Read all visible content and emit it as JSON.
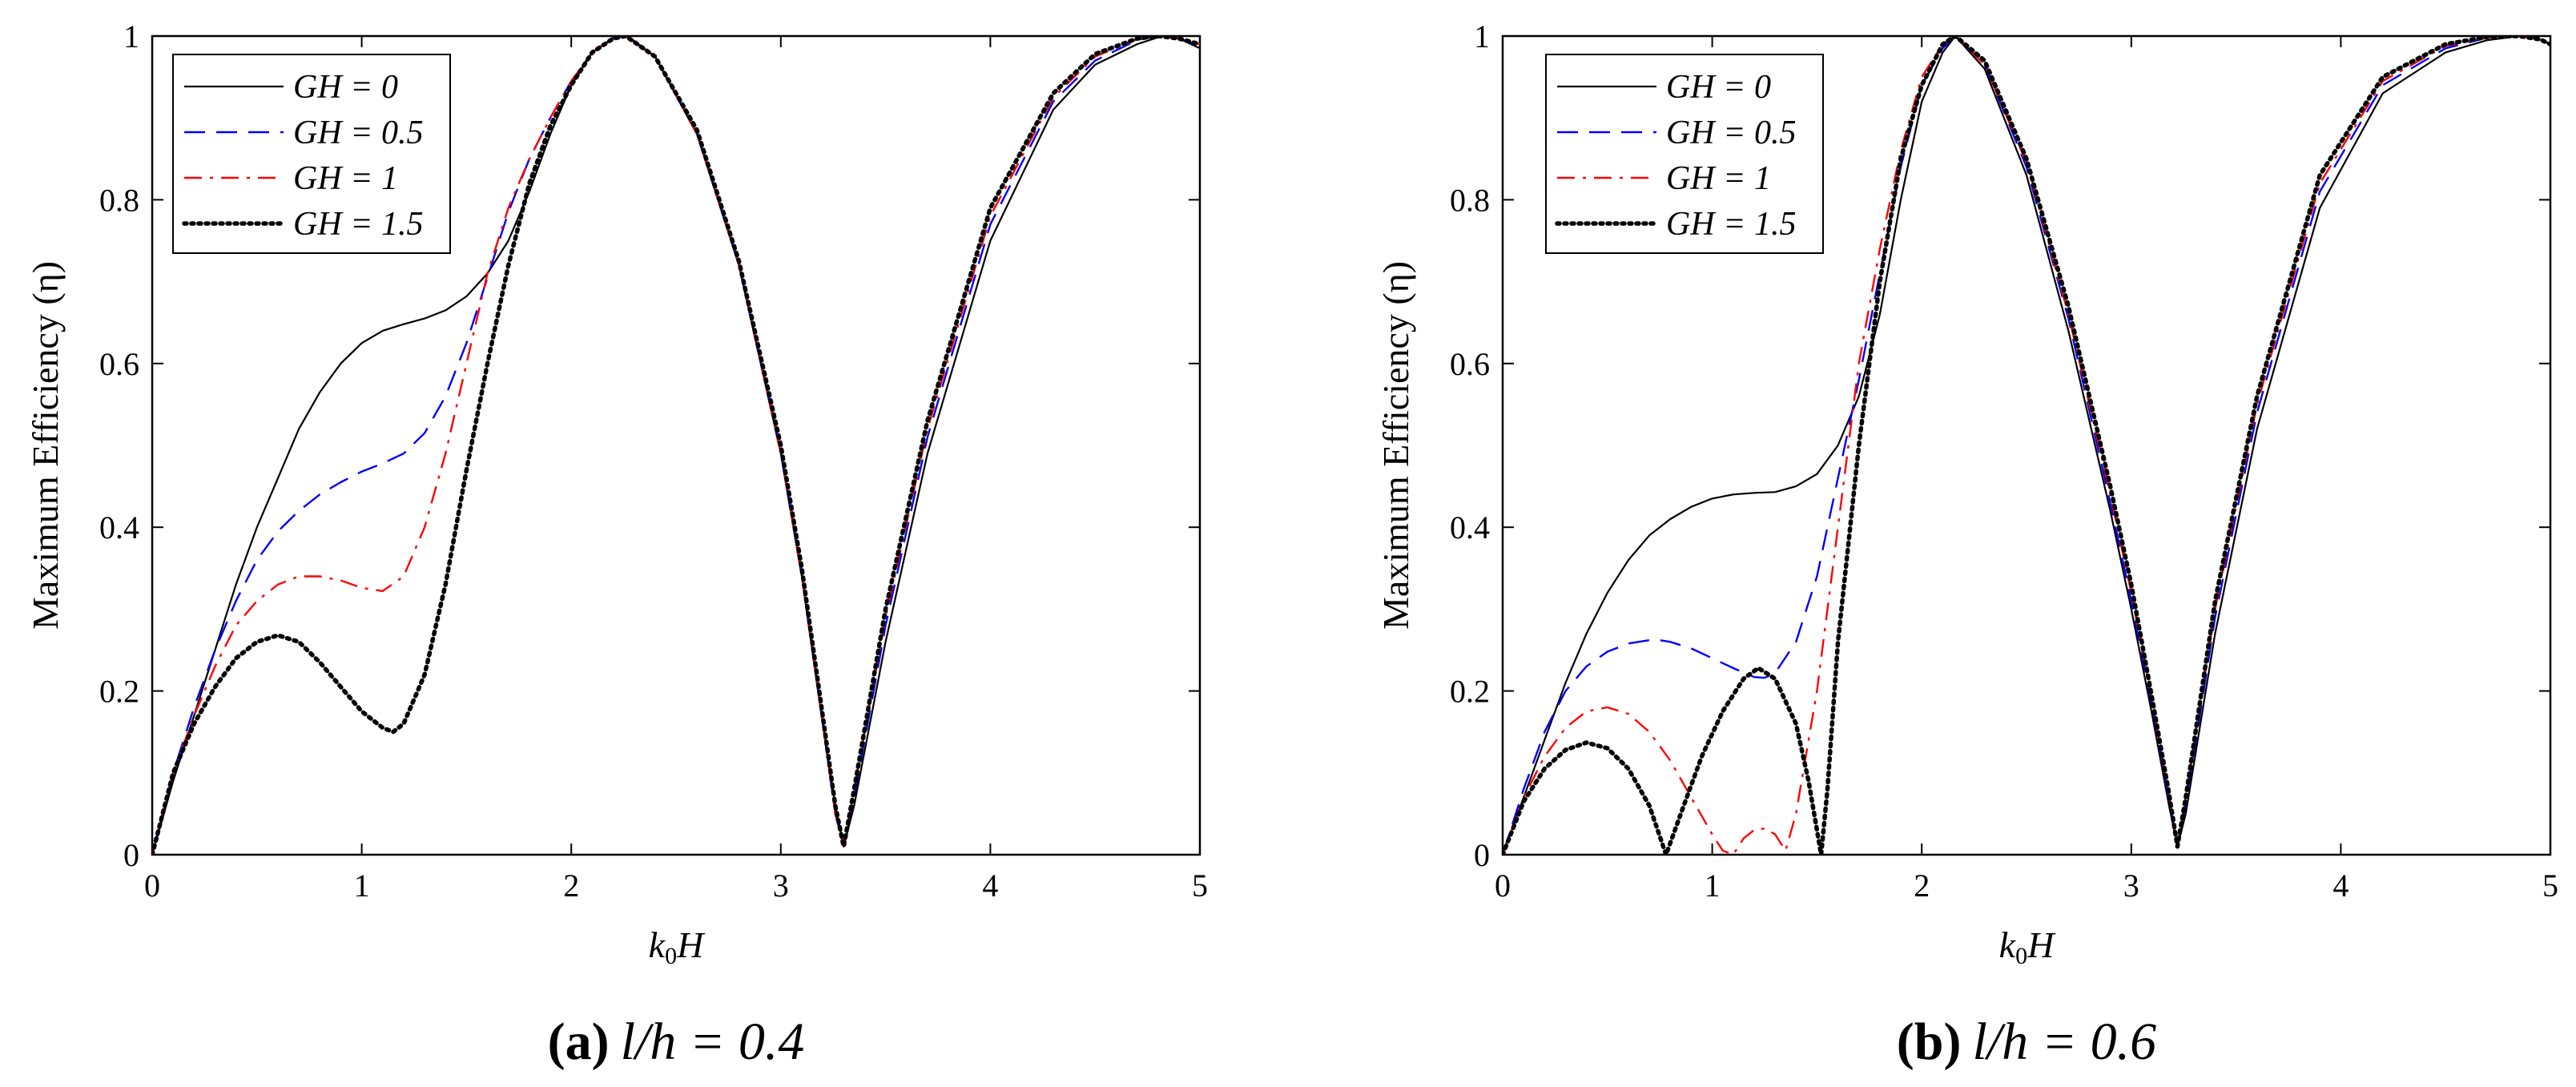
{
  "figure": {
    "caption_a": {
      "tag": "(a)",
      "text": "l/h = 0.4"
    },
    "caption_b": {
      "tag": "(b)",
      "text": "l/h = 0.6"
    }
  },
  "colors": {
    "GH0": "#000000",
    "GH05": "#0000ff",
    "GH1": "#ff0000",
    "GH15": "#000000",
    "axes": "#000000",
    "background": "#ffffff"
  },
  "chart_data": [
    {
      "type": "line",
      "title": "",
      "xlabel": "k₀H",
      "ylabel": "Maximum Efficiency (η)",
      "xlim": [
        0,
        5
      ],
      "ylim": [
        0,
        1
      ],
      "xticks": [
        0,
        1,
        2,
        3,
        4,
        5
      ],
      "xtick_labels": [
        "0",
        "1",
        "2",
        "3",
        "4",
        "5"
      ],
      "yticks": [
        0,
        0.2,
        0.4,
        0.6,
        0.8,
        1
      ],
      "ytick_labels": [
        "0",
        "0.2",
        "0.4",
        "0.6",
        "0.8",
        "1"
      ],
      "grid": false,
      "legend_position": "top-left",
      "series": [
        {
          "name": "GH = 0",
          "style": "solid",
          "x": [
            0,
            0.1,
            0.2,
            0.3,
            0.4,
            0.5,
            0.6,
            0.7,
            0.8,
            0.9,
            1.0,
            1.1,
            1.2,
            1.3,
            1.4,
            1.5,
            1.6,
            1.7,
            1.8,
            1.9,
            2.0,
            2.1,
            2.2,
            2.27,
            2.4,
            2.6,
            2.8,
            3.0,
            3.1,
            3.2,
            3.26,
            3.3,
            3.35,
            3.5,
            3.7,
            4.0,
            4.3,
            4.5,
            4.7,
            4.82,
            4.9,
            5.0
          ],
          "y": [
            0,
            0.09,
            0.17,
            0.25,
            0.33,
            0.4,
            0.46,
            0.52,
            0.565,
            0.6,
            0.625,
            0.64,
            0.648,
            0.655,
            0.665,
            0.682,
            0.71,
            0.75,
            0.81,
            0.88,
            0.94,
            0.98,
            0.998,
            1.0,
            0.975,
            0.88,
            0.72,
            0.49,
            0.34,
            0.16,
            0.06,
            0.01,
            0.06,
            0.26,
            0.49,
            0.75,
            0.91,
            0.965,
            0.99,
            1.0,
            0.997,
            0.985
          ]
        },
        {
          "name": "GH = 0.5",
          "style": "dashed",
          "x": [
            0,
            0.1,
            0.2,
            0.3,
            0.4,
            0.5,
            0.6,
            0.7,
            0.8,
            0.9,
            1.0,
            1.1,
            1.2,
            1.3,
            1.4,
            1.5,
            1.6,
            1.7,
            1.8,
            1.9,
            2.0,
            2.1,
            2.2,
            2.26,
            2.4,
            2.6,
            2.8,
            3.0,
            3.1,
            3.2,
            3.26,
            3.3,
            3.35,
            3.5,
            3.7,
            4.0,
            4.3,
            4.5,
            4.7,
            4.8,
            4.9,
            5.0
          ],
          "y": [
            0,
            0.1,
            0.18,
            0.25,
            0.31,
            0.36,
            0.395,
            0.42,
            0.44,
            0.455,
            0.468,
            0.478,
            0.49,
            0.515,
            0.56,
            0.625,
            0.705,
            0.785,
            0.85,
            0.9,
            0.945,
            0.98,
            0.997,
            1.0,
            0.975,
            0.88,
            0.72,
            0.49,
            0.34,
            0.16,
            0.05,
            0.01,
            0.07,
            0.28,
            0.51,
            0.77,
            0.92,
            0.97,
            0.995,
            1.0,
            0.997,
            0.988
          ]
        },
        {
          "name": "GH = 1",
          "style": "dashdot",
          "x": [
            0,
            0.1,
            0.2,
            0.3,
            0.4,
            0.5,
            0.6,
            0.7,
            0.8,
            0.9,
            1.0,
            1.1,
            1.2,
            1.3,
            1.4,
            1.5,
            1.6,
            1.7,
            1.8,
            1.9,
            2.0,
            2.1,
            2.2,
            2.26,
            2.4,
            2.6,
            2.8,
            3.0,
            3.1,
            3.2,
            3.26,
            3.3,
            3.35,
            3.5,
            3.7,
            4.0,
            4.3,
            4.5,
            4.7,
            4.8,
            4.9,
            5.0
          ],
          "y": [
            0,
            0.1,
            0.17,
            0.23,
            0.28,
            0.31,
            0.33,
            0.34,
            0.34,
            0.335,
            0.326,
            0.322,
            0.34,
            0.4,
            0.49,
            0.6,
            0.71,
            0.79,
            0.85,
            0.9,
            0.945,
            0.98,
            0.997,
            1.0,
            0.975,
            0.88,
            0.72,
            0.49,
            0.34,
            0.16,
            0.05,
            0.01,
            0.08,
            0.29,
            0.52,
            0.78,
            0.925,
            0.975,
            0.996,
            1.0,
            0.997,
            0.99
          ]
        },
        {
          "name": "GH = 1.5",
          "style": "dotted",
          "x": [
            0,
            0.1,
            0.2,
            0.3,
            0.4,
            0.5,
            0.6,
            0.7,
            0.8,
            0.9,
            1.0,
            1.1,
            1.15,
            1.2,
            1.3,
            1.4,
            1.5,
            1.6,
            1.7,
            1.8,
            1.9,
            2.0,
            2.1,
            2.2,
            2.26,
            2.4,
            2.6,
            2.8,
            3.0,
            3.1,
            3.2,
            3.26,
            3.3,
            3.35,
            3.5,
            3.7,
            4.0,
            4.3,
            4.5,
            4.7,
            4.8,
            4.9,
            5.0
          ],
          "y": [
            0,
            0.1,
            0.16,
            0.205,
            0.24,
            0.26,
            0.268,
            0.26,
            0.235,
            0.205,
            0.175,
            0.155,
            0.15,
            0.16,
            0.22,
            0.33,
            0.47,
            0.6,
            0.72,
            0.82,
            0.89,
            0.94,
            0.98,
            0.997,
            1.0,
            0.975,
            0.885,
            0.725,
            0.5,
            0.35,
            0.17,
            0.06,
            0.01,
            0.08,
            0.3,
            0.53,
            0.79,
            0.93,
            0.978,
            0.997,
            1.0,
            0.997,
            0.99
          ]
        }
      ]
    },
    {
      "type": "line",
      "title": "",
      "xlabel": "k₀H",
      "ylabel": "Maximum Efficiency (η)",
      "xlim": [
        0,
        5
      ],
      "ylim": [
        0,
        1
      ],
      "xticks": [
        0,
        1,
        2,
        3,
        4,
        5
      ],
      "xtick_labels": [
        "0",
        "1",
        "2",
        "3",
        "4",
        "5"
      ],
      "yticks": [
        0,
        0.2,
        0.4,
        0.6,
        0.8,
        1
      ],
      "ytick_labels": [
        "0",
        "0.2",
        "0.4",
        "0.6",
        "0.8",
        "1"
      ],
      "grid": false,
      "legend_position": "top-left",
      "series": [
        {
          "name": "GH = 0",
          "style": "solid",
          "x": [
            0,
            0.1,
            0.2,
            0.3,
            0.4,
            0.5,
            0.6,
            0.7,
            0.8,
            0.9,
            1.0,
            1.1,
            1.2,
            1.3,
            1.4,
            1.5,
            1.6,
            1.7,
            1.8,
            1.9,
            2.0,
            2.1,
            2.16,
            2.3,
            2.5,
            2.7,
            2.9,
            3.0,
            3.1,
            3.18,
            3.22,
            3.26,
            3.4,
            3.6,
            3.9,
            4.2,
            4.5,
            4.7,
            4.85,
            4.95,
            5.0
          ],
          "y": [
            0,
            0.07,
            0.14,
            0.21,
            0.27,
            0.32,
            0.36,
            0.39,
            0.41,
            0.425,
            0.435,
            0.44,
            0.442,
            0.443,
            0.45,
            0.465,
            0.5,
            0.56,
            0.66,
            0.8,
            0.92,
            0.98,
            1.0,
            0.96,
            0.83,
            0.64,
            0.42,
            0.3,
            0.17,
            0.06,
            0.01,
            0.05,
            0.27,
            0.52,
            0.79,
            0.93,
            0.98,
            0.995,
            1.0,
            0.996,
            0.99
          ]
        },
        {
          "name": "GH = 0.5",
          "style": "dashed",
          "x": [
            0,
            0.1,
            0.2,
            0.3,
            0.4,
            0.5,
            0.6,
            0.7,
            0.75,
            0.8,
            0.9,
            1.0,
            1.1,
            1.2,
            1.25,
            1.3,
            1.4,
            1.5,
            1.6,
            1.7,
            1.8,
            1.9,
            2.0,
            2.1,
            2.16,
            2.3,
            2.5,
            2.7,
            2.9,
            3.0,
            3.1,
            3.18,
            3.22,
            3.26,
            3.4,
            3.6,
            3.9,
            4.2,
            4.5,
            4.7,
            4.85,
            4.95,
            5.0
          ],
          "y": [
            0,
            0.08,
            0.15,
            0.2,
            0.23,
            0.248,
            0.258,
            0.262,
            0.262,
            0.26,
            0.252,
            0.24,
            0.228,
            0.217,
            0.216,
            0.222,
            0.26,
            0.34,
            0.46,
            0.58,
            0.71,
            0.84,
            0.94,
            0.985,
            1.0,
            0.965,
            0.84,
            0.655,
            0.43,
            0.31,
            0.18,
            0.065,
            0.01,
            0.06,
            0.29,
            0.54,
            0.81,
            0.94,
            0.985,
            0.998,
            1.0,
            0.996,
            0.99
          ]
        },
        {
          "name": "GH = 1",
          "style": "dashdot",
          "x": [
            0,
            0.1,
            0.2,
            0.3,
            0.4,
            0.5,
            0.6,
            0.7,
            0.8,
            0.9,
            1.0,
            1.05,
            1.1,
            1.15,
            1.2,
            1.25,
            1.3,
            1.35,
            1.4,
            1.5,
            1.6,
            1.7,
            1.8,
            1.9,
            2.0,
            2.1,
            2.16,
            2.3,
            2.5,
            2.7,
            2.9,
            3.0,
            3.1,
            3.18,
            3.22,
            3.26,
            3.4,
            3.6,
            3.9,
            4.2,
            4.5,
            4.7,
            4.85,
            4.95,
            5.0
          ],
          "y": [
            0,
            0.07,
            0.12,
            0.155,
            0.175,
            0.18,
            0.172,
            0.15,
            0.115,
            0.07,
            0.025,
            0.005,
            0.0,
            0.02,
            0.03,
            0.032,
            0.025,
            0.005,
            0.05,
            0.2,
            0.4,
            0.6,
            0.74,
            0.86,
            0.95,
            0.99,
            1.0,
            0.965,
            0.845,
            0.66,
            0.44,
            0.32,
            0.185,
            0.07,
            0.01,
            0.07,
            0.3,
            0.55,
            0.82,
            0.945,
            0.988,
            0.998,
            1.0,
            0.996,
            0.99
          ]
        },
        {
          "name": "GH = 1.5",
          "style": "dotted",
          "x": [
            0,
            0.1,
            0.2,
            0.3,
            0.4,
            0.5,
            0.6,
            0.7,
            0.78,
            0.85,
            0.95,
            1.05,
            1.15,
            1.22,
            1.3,
            1.4,
            1.46,
            1.52,
            1.55,
            1.6,
            1.7,
            1.8,
            1.9,
            2.0,
            2.1,
            2.16,
            2.3,
            2.5,
            2.7,
            2.9,
            3.0,
            3.1,
            3.18,
            3.22,
            3.26,
            3.4,
            3.6,
            3.9,
            4.2,
            4.5,
            4.7,
            4.85,
            4.95,
            5.0
          ],
          "y": [
            0,
            0.065,
            0.105,
            0.128,
            0.137,
            0.13,
            0.105,
            0.06,
            0.0,
            0.05,
            0.12,
            0.175,
            0.215,
            0.228,
            0.215,
            0.16,
            0.09,
            0.0,
            0.08,
            0.26,
            0.5,
            0.7,
            0.85,
            0.94,
            0.99,
            1.0,
            0.97,
            0.85,
            0.67,
            0.45,
            0.33,
            0.19,
            0.075,
            0.01,
            0.07,
            0.31,
            0.56,
            0.83,
            0.95,
            0.99,
            0.999,
            1.0,
            0.996,
            0.99
          ]
        }
      ]
    }
  ]
}
